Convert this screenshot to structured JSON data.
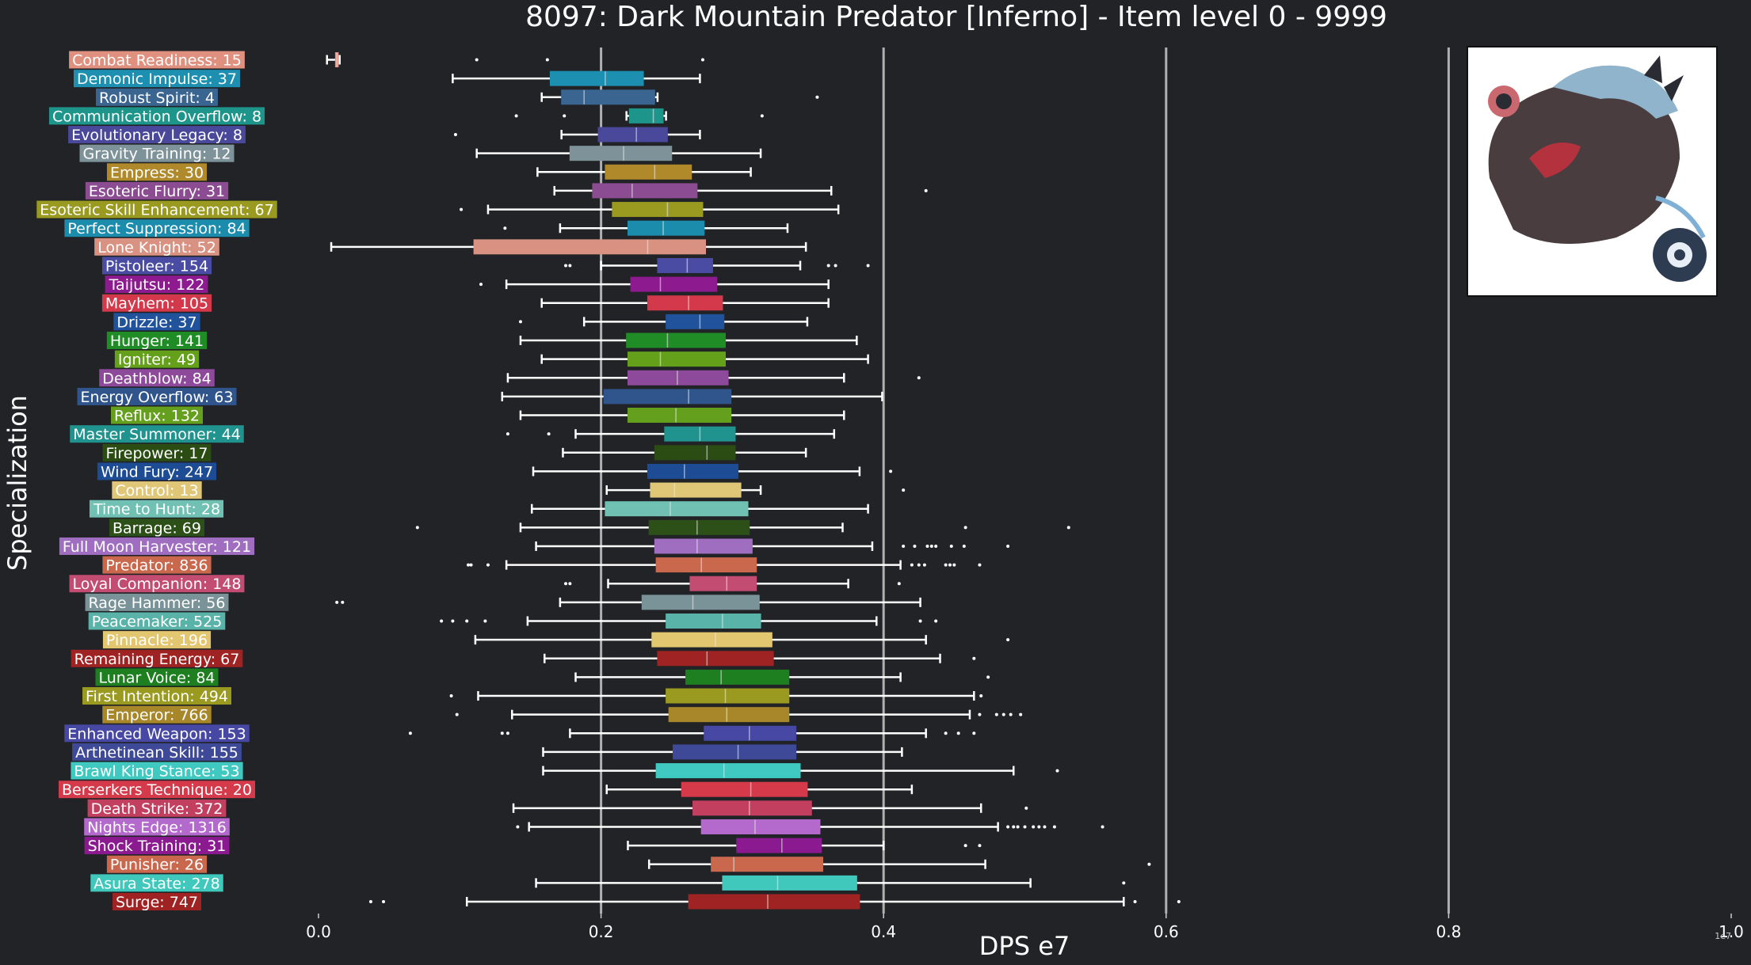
{
  "chart_data": {
    "type": "boxplot",
    "title": "8097: Dark Mountain Predator [Inferno] - Item level 0 - 9999",
    "xlabel": "DPS e7",
    "ylabel": "Specialization",
    "x_exponent_label": "1e7",
    "xlim": [
      0,
      1.0
    ],
    "xticks": [
      "0.0",
      "0.2",
      "0.4",
      "0.6",
      "0.8",
      "1.0"
    ],
    "grid": "vertical",
    "thumbnail_icon": "dark-mountain-predator-boss-portrait",
    "series": [
      {
        "label": "Combat Readiness: 15",
        "color": "#e0907f",
        "stats": [
          0.006,
          0.012,
          0.013,
          0.014,
          0.015
        ],
        "outliers": [
          0.112,
          0.162,
          0.272
        ]
      },
      {
        "label": "Demonic Impulse: 37",
        "color": "#1d8fb1",
        "stats": [
          0.095,
          0.164,
          0.203,
          0.23,
          0.27
        ],
        "outliers": []
      },
      {
        "label": "Robust Spirit: 4",
        "color": "#3a6591",
        "stats": [
          0.158,
          0.172,
          0.188,
          0.238,
          0.24
        ],
        "outliers": [
          0.353
        ]
      },
      {
        "label": "Communication Overflow: 8",
        "color": "#1e958a",
        "stats": [
          0.218,
          0.22,
          0.237,
          0.244,
          0.246
        ],
        "outliers": [
          0.14,
          0.174,
          0.314
        ]
      },
      {
        "label": "Evolutionary Legacy: 8",
        "color": "#49489a",
        "stats": [
          0.172,
          0.198,
          0.225,
          0.247,
          0.27
        ],
        "outliers": [
          0.097
        ]
      },
      {
        "label": "Gravity Training: 12",
        "color": "#7e9399",
        "stats": [
          0.112,
          0.178,
          0.216,
          0.25,
          0.313
        ],
        "outliers": []
      },
      {
        "label": "Empress: 30",
        "color": "#b0892b",
        "stats": [
          0.155,
          0.203,
          0.238,
          0.264,
          0.306
        ],
        "outliers": []
      },
      {
        "label": "Esoteric Flurry: 31",
        "color": "#8c4c91",
        "stats": [
          0.167,
          0.194,
          0.222,
          0.268,
          0.363
        ],
        "outliers": [
          0.43
        ]
      },
      {
        "label": "Esoteric Skill Enhancement: 67",
        "color": "#9a9a20",
        "stats": [
          0.12,
          0.208,
          0.247,
          0.272,
          0.368
        ],
        "outliers": [
          0.101
        ]
      },
      {
        "label": "Perfect Suppression: 84",
        "color": "#1c8cad",
        "stats": [
          0.171,
          0.219,
          0.244,
          0.273,
          0.332
        ],
        "outliers": [
          0.132
        ]
      },
      {
        "label": "Lone Knight: 52",
        "color": "#d99282",
        "stats": [
          0.009,
          0.11,
          0.233,
          0.274,
          0.345
        ],
        "outliers": []
      },
      {
        "label": "Pistoleer: 154",
        "color": "#4a4ba3",
        "stats": [
          0.2,
          0.24,
          0.261,
          0.279,
          0.341
        ],
        "outliers": [
          0.175,
          0.178,
          0.361,
          0.366,
          0.389
        ]
      },
      {
        "label": "Taijutsu: 122",
        "color": "#8e1a90",
        "stats": [
          0.133,
          0.221,
          0.242,
          0.282,
          0.361
        ],
        "outliers": [
          0.115
        ]
      },
      {
        "label": "Mayhem: 105",
        "color": "#d3394a",
        "stats": [
          0.158,
          0.233,
          0.262,
          0.286,
          0.361
        ],
        "outliers": []
      },
      {
        "label": "Drizzle: 37",
        "color": "#21539c",
        "stats": [
          0.188,
          0.246,
          0.27,
          0.287,
          0.346
        ],
        "outliers": [
          0.143
        ]
      },
      {
        "label": "Hunger: 141",
        "color": "#1f8c25",
        "stats": [
          0.143,
          0.218,
          0.247,
          0.288,
          0.381
        ],
        "outliers": []
      },
      {
        "label": "Igniter: 49",
        "color": "#64a01a",
        "stats": [
          0.158,
          0.219,
          0.242,
          0.288,
          0.389
        ],
        "outliers": []
      },
      {
        "label": "Deathblow: 84",
        "color": "#8e4a9a",
        "stats": [
          0.134,
          0.219,
          0.254,
          0.29,
          0.372
        ],
        "outliers": [
          0.425
        ]
      },
      {
        "label": "Energy Overflow: 63",
        "color": "#30558c",
        "stats": [
          0.13,
          0.202,
          0.262,
          0.292,
          0.399
        ],
        "outliers": []
      },
      {
        "label": "Reflux: 132",
        "color": "#64a01e",
        "stats": [
          0.143,
          0.219,
          0.253,
          0.292,
          0.372
        ],
        "outliers": []
      },
      {
        "label": "Master Summoner: 44",
        "color": "#21938e",
        "stats": [
          0.182,
          0.245,
          0.27,
          0.295,
          0.365
        ],
        "outliers": [
          0.134,
          0.163
        ]
      },
      {
        "label": "Firepower: 17",
        "color": "#2b4d14",
        "stats": [
          0.173,
          0.238,
          0.275,
          0.295,
          0.345
        ],
        "outliers": []
      },
      {
        "label": "Wind Fury: 247",
        "color": "#1d4c94",
        "stats": [
          0.152,
          0.233,
          0.259,
          0.297,
          0.383
        ],
        "outliers": [
          0.405
        ]
      },
      {
        "label": "Control: 13",
        "color": "#e0c777",
        "stats": [
          0.204,
          0.235,
          0.252,
          0.299,
          0.313
        ],
        "outliers": [
          0.414
        ]
      },
      {
        "label": "Time to Hunt: 28",
        "color": "#70c1b3",
        "stats": [
          0.151,
          0.203,
          0.249,
          0.304,
          0.389
        ],
        "outliers": []
      },
      {
        "label": "Barrage: 69",
        "color": "#2c5018",
        "stats": [
          0.143,
          0.234,
          0.268,
          0.305,
          0.371
        ],
        "outliers": [
          0.07,
          0.458,
          0.531
        ]
      },
      {
        "label": "Full Moon Harvester: 121",
        "color": "#a06ec1",
        "stats": [
          0.154,
          0.238,
          0.268,
          0.307,
          0.392
        ],
        "outliers": [
          0.414,
          0.422,
          0.431,
          0.434,
          0.437,
          0.448,
          0.457,
          0.488
        ]
      },
      {
        "label": "Predator: 836",
        "color": "#c9684d",
        "stats": [
          0.133,
          0.239,
          0.271,
          0.31,
          0.412
        ],
        "outliers": [
          0.106,
          0.108,
          0.12,
          0.42,
          0.425,
          0.429,
          0.444,
          0.447,
          0.45,
          0.468
        ]
      },
      {
        "label": "Loyal Companion: 148",
        "color": "#c34c72",
        "stats": [
          0.205,
          0.263,
          0.289,
          0.31,
          0.375
        ],
        "outliers": [
          0.175,
          0.178,
          0.411
        ]
      },
      {
        "label": "Rage Hammer: 56",
        "color": "#7a9398",
        "stats": [
          0.171,
          0.229,
          0.265,
          0.312,
          0.426
        ],
        "outliers": [
          0.013,
          0.017
        ]
      },
      {
        "label": "Peacemaker: 525",
        "color": "#5ab3a8",
        "stats": [
          0.148,
          0.246,
          0.286,
          0.313,
          0.395
        ],
        "outliers": [
          0.087,
          0.095,
          0.105,
          0.118,
          0.426,
          0.437
        ]
      },
      {
        "label": "Pinnacle: 196",
        "color": "#e3c670",
        "stats": [
          0.111,
          0.236,
          0.281,
          0.321,
          0.43
        ],
        "outliers": [
          0.488
        ]
      },
      {
        "label": "Remaining Energy: 67",
        "color": "#a02323",
        "stats": [
          0.16,
          0.24,
          0.275,
          0.322,
          0.44
        ],
        "outliers": [
          0.464
        ]
      },
      {
        "label": "Lunar Voice: 84",
        "color": "#1d7f1f",
        "stats": [
          0.182,
          0.26,
          0.285,
          0.333,
          0.412
        ],
        "outliers": [
          0.474
        ]
      },
      {
        "label": "First Intention: 494",
        "color": "#9a9a20",
        "stats": [
          0.113,
          0.246,
          0.288,
          0.333,
          0.464
        ],
        "outliers": [
          0.094,
          0.469
        ]
      },
      {
        "label": "Emperor: 766",
        "color": "#a8872a",
        "stats": [
          0.137,
          0.248,
          0.289,
          0.333,
          0.461
        ],
        "outliers": [
          0.098,
          0.468,
          0.48,
          0.485,
          0.49,
          0.497
        ]
      },
      {
        "label": "Enhanced Weapon: 153",
        "color": "#4747a4",
        "stats": [
          0.178,
          0.273,
          0.305,
          0.338,
          0.43
        ],
        "outliers": [
          0.065,
          0.13,
          0.134,
          0.444,
          0.453,
          0.464
        ]
      },
      {
        "label": "Arthetinean Skill: 155",
        "color": "#3e4a98",
        "stats": [
          0.159,
          0.251,
          0.297,
          0.338,
          0.413
        ],
        "outliers": []
      },
      {
        "label": "Brawl King Stance: 53",
        "color": "#3fc9c0",
        "stats": [
          0.159,
          0.239,
          0.287,
          0.341,
          0.492
        ],
        "outliers": [
          0.523
        ]
      },
      {
        "label": "Berserkers Technique: 20",
        "color": "#d43a4a",
        "stats": [
          0.204,
          0.257,
          0.306,
          0.346,
          0.42
        ],
        "outliers": []
      },
      {
        "label": "Death Strike: 372",
        "color": "#c33f60",
        "stats": [
          0.138,
          0.265,
          0.305,
          0.349,
          0.469
        ],
        "outliers": [
          0.501
        ]
      },
      {
        "label": "Nights Edge: 1316",
        "color": "#b36acc",
        "stats": [
          0.149,
          0.271,
          0.309,
          0.355,
          0.481
        ],
        "outliers": [
          0.141,
          0.488,
          0.492,
          0.495,
          0.5,
          0.506,
          0.51,
          0.514,
          0.521,
          0.555
        ]
      },
      {
        "label": "Shock Training: 31",
        "color": "#8b1a90",
        "stats": [
          0.219,
          0.296,
          0.328,
          0.356,
          0.4
        ],
        "outliers": [
          0.458,
          0.468
        ]
      },
      {
        "label": "Punisher: 26",
        "color": "#c9684d",
        "stats": [
          0.234,
          0.278,
          0.294,
          0.357,
          0.472
        ],
        "outliers": [
          0.588
        ]
      },
      {
        "label": "Asura State: 278",
        "color": "#40c8bc",
        "stats": [
          0.154,
          0.286,
          0.325,
          0.381,
          0.504
        ],
        "outliers": [
          0.57
        ]
      },
      {
        "label": "Surge: 747",
        "color": "#a02323",
        "stats": [
          0.105,
          0.262,
          0.318,
          0.383,
          0.57
        ],
        "outliers": [
          0.037,
          0.046,
          0.578,
          0.609
        ]
      }
    ]
  }
}
